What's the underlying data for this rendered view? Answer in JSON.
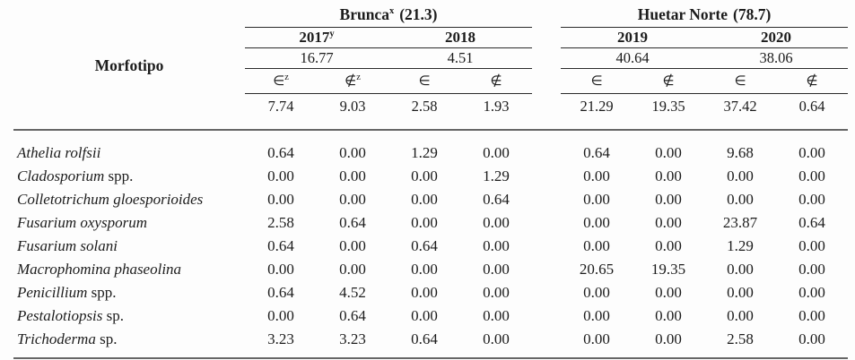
{
  "table": {
    "morfotipo_label": "Morfotipo",
    "groups": [
      {
        "name": "Brunca",
        "sup": "x",
        "share": "(21.3)",
        "years": [
          {
            "label": "2017",
            "sup": "y",
            "frequency": "16.77"
          },
          {
            "label": "2018",
            "sup": "",
            "frequency": "4.51"
          }
        ]
      },
      {
        "name": "Huetar Norte",
        "sup": "",
        "share": "(78.7)",
        "years": [
          {
            "label": "2019",
            "sup": "",
            "frequency": "40.64"
          },
          {
            "label": "2020",
            "sup": "",
            "frequency": "38.06"
          }
        ]
      }
    ],
    "symbol_in": "∈",
    "symbol_notin": "∉",
    "symbol_sup": "z",
    "column_totals": [
      "7.74",
      "9.03",
      "2.58",
      "1.93",
      "21.29",
      "19.35",
      "37.42",
      "0.64"
    ],
    "rows": [
      {
        "name": "Athelia rolfsii",
        "suffix": "",
        "values": [
          "0.64",
          "0.00",
          "1.29",
          "0.00",
          "0.64",
          "0.00",
          "9.68",
          "0.00"
        ]
      },
      {
        "name": "Cladosporium",
        "suffix": "spp.",
        "values": [
          "0.00",
          "0.00",
          "0.00",
          "1.29",
          "0.00",
          "0.00",
          "0.00",
          "0.00"
        ]
      },
      {
        "name": "Colletotrichum gloesporioides",
        "suffix": "",
        "values": [
          "0.00",
          "0.00",
          "0.00",
          "0.64",
          "0.00",
          "0.00",
          "0.00",
          "0.00"
        ]
      },
      {
        "name": "Fusarium oxysporum",
        "suffix": "",
        "values": [
          "2.58",
          "0.64",
          "0.00",
          "0.00",
          "0.00",
          "0.00",
          "23.87",
          "0.64"
        ]
      },
      {
        "name": "Fusarium solani",
        "suffix": "",
        "values": [
          "0.64",
          "0.00",
          "0.64",
          "0.00",
          "0.00",
          "0.00",
          "1.29",
          "0.00"
        ]
      },
      {
        "name": "Macrophomina phaseolina",
        "suffix": "",
        "values": [
          "0.00",
          "0.00",
          "0.00",
          "0.00",
          "20.65",
          "19.35",
          "0.00",
          "0.00"
        ]
      },
      {
        "name": "Penicillium",
        "suffix": "spp.",
        "values": [
          "0.64",
          "4.52",
          "0.00",
          "0.00",
          "0.00",
          "0.00",
          "0.00",
          "0.00"
        ]
      },
      {
        "name": "Pestalotiopsis",
        "suffix": "sp.",
        "values": [
          "0.00",
          "0.64",
          "0.00",
          "0.00",
          "0.00",
          "0.00",
          "0.00",
          "0.00"
        ]
      },
      {
        "name": "Trichoderma",
        "suffix": "sp.",
        "values": [
          "3.23",
          "3.23",
          "0.64",
          "0.00",
          "0.00",
          "0.00",
          "2.58",
          "0.00"
        ]
      }
    ]
  }
}
